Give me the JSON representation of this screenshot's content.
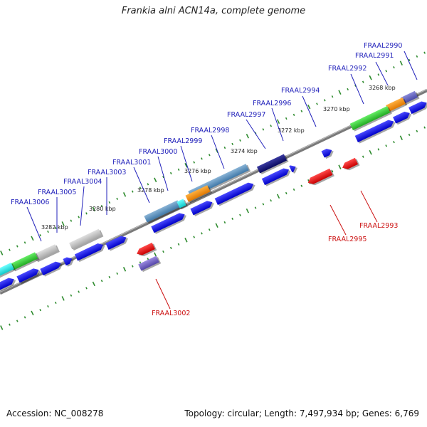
{
  "title": "Frankia alni ACN14a, complete genome",
  "footer": {
    "accession": "Accession: NC_008278",
    "summary": "Topology: circular; Length: 7,497,934 bp; Genes: 6,769"
  },
  "colors": {
    "forward_label": "#2222bb",
    "reverse_label": "#cc1111",
    "backbone": "#8a8a8a",
    "tick": "#2e8b2e",
    "cds_forward": "#1010e0",
    "cds_reverse": "#e01010"
  },
  "ruler_ticks": [
    "3268 kbp",
    "3270 kbp",
    "3272 kbp",
    "3274 kbp",
    "3276 kbp",
    "3278 kbp",
    "3280 kbp",
    "3282 kbp"
  ],
  "genes_forward": [
    "FRAAL2990",
    "FRAAL2991",
    "FRAAL2992",
    "FRAAL2994",
    "FRAAL2996",
    "FRAAL2997",
    "FRAAL2998",
    "FRAAL2999",
    "FRAAL3000",
    "FRAAL3001",
    "FRAAL3003",
    "FRAAL3004",
    "FRAAL3005",
    "FRAAL3006"
  ],
  "genes_reverse": [
    "FRAAL2993",
    "FRAAL2995",
    "FRAAL3002"
  ]
}
